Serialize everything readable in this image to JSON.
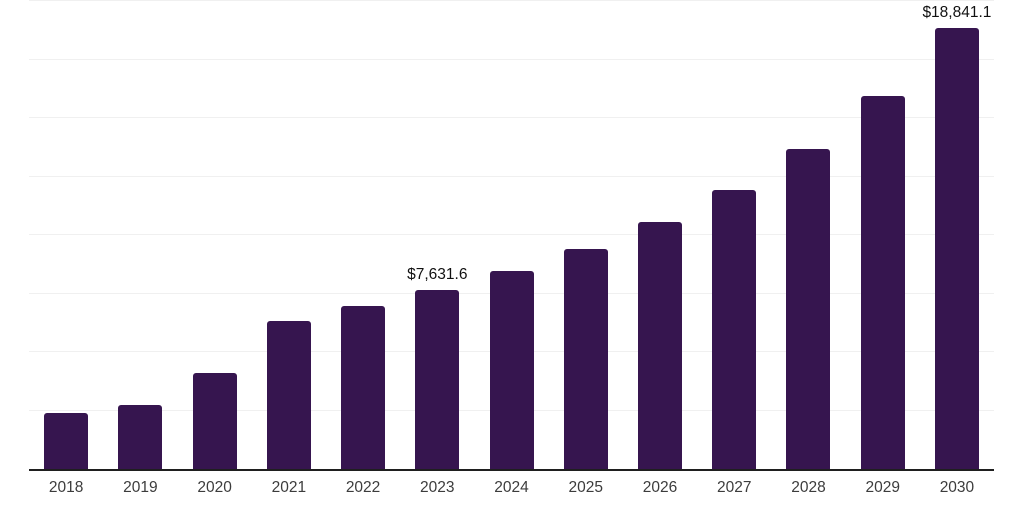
{
  "chart_data": {
    "type": "bar",
    "title": "",
    "xlabel": "",
    "ylabel": "",
    "categories": [
      "2018",
      "2019",
      "2020",
      "2021",
      "2022",
      "2023",
      "2024",
      "2025",
      "2026",
      "2027",
      "2028",
      "2029",
      "2030"
    ],
    "values": [
      2390,
      2750,
      4120,
      6330,
      6970,
      7631.6,
      8460,
      9400,
      10560,
      11920,
      13680,
      15940,
      18841.1
    ],
    "data_labels": [
      "",
      "",
      "",
      "",
      "",
      "$7,631.6",
      "",
      "",
      "",
      "",
      "",
      "",
      "$18,841.1"
    ],
    "ylim": [
      0,
      20000
    ],
    "grid_step": 2500,
    "grid": true,
    "legend": "none",
    "colors": {
      "bar": "#36154F",
      "gridline": "#F0F0F0",
      "axis_line": "#1F1F1F",
      "tick_label": "#3C3C3C",
      "data_label": "#111111",
      "background": "#FFFFFF"
    }
  }
}
